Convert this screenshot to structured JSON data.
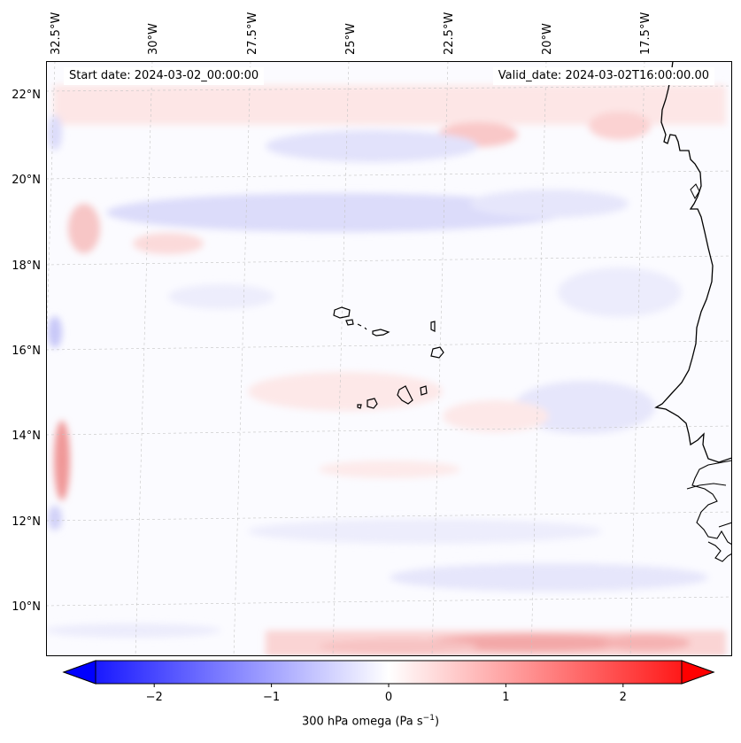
{
  "map": {
    "start_date": "Start date: 2024-03-02_00:00:00",
    "valid_date": "Valid_date: 2024-03-02T16:00:00.00",
    "lon_labels": [
      "32.5°W",
      "30°W",
      "27.5°W",
      "25°W",
      "22.5°W",
      "20°W",
      "17.5°W"
    ],
    "lat_labels": [
      "22°N",
      "20°N",
      "18°N",
      "16°N",
      "14°N",
      "12°N",
      "10°N"
    ],
    "lon_range": [
      -32.8,
      -15.5
    ],
    "lat_range": [
      8.9,
      22.8
    ],
    "field": "300 hPa omega",
    "colormap": "bwr",
    "colors": {
      "negative": "#0000ff",
      "zero": "#ffffff",
      "positive": "#ff0000",
      "coastline": "#000000",
      "grid": "#bbbbbb"
    }
  },
  "colorbar": {
    "min": -2.5,
    "max": 2.5,
    "extend": "both",
    "ticks": [
      "−2",
      "−1",
      "0",
      "1",
      "2"
    ],
    "tick_values": [
      -2,
      -1,
      0,
      1,
      2
    ],
    "label": "300 hPa omega (Pa s",
    "label_exp": "−1",
    "label_close": ")"
  }
}
